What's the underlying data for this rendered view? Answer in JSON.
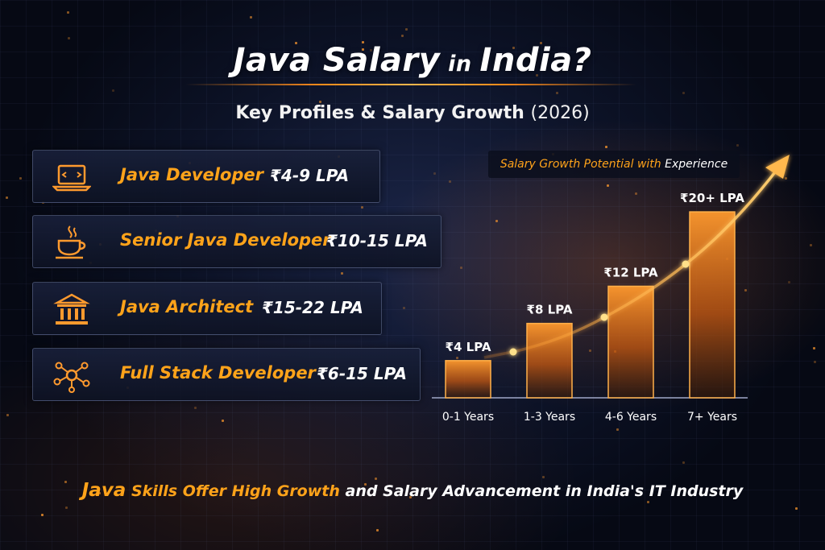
{
  "title": {
    "main": "Java Salary",
    "small": " in ",
    "end": "India?"
  },
  "subtitle": {
    "text": "Key Profiles & Salary Growth",
    "year": "(2026)"
  },
  "profiles": [
    {
      "name": "Java Developer",
      "salary": "₹4-9 LPA",
      "icon": "laptop-icon"
    },
    {
      "name": "Senior Java Developer",
      "salary": "₹10-15 LPA",
      "icon": "java-cup-icon"
    },
    {
      "name": "Java Architect",
      "salary": "₹15-22 LPA",
      "icon": "architecture-building-icon"
    },
    {
      "name": "Full Stack Developer",
      "salary": "₹6-15 LPA",
      "icon": "network-nodes-icon"
    }
  ],
  "chart_label": {
    "orange": "Salary Growth Potential with ",
    "white": "Experience"
  },
  "chart_data": {
    "type": "bar",
    "title": "Salary Growth Potential with Experience",
    "categories": [
      "0-1 Years",
      "1-3 Years",
      "4-6 Years",
      "7+ Years"
    ],
    "values": [
      4,
      8,
      12,
      20
    ],
    "labels": [
      "₹4 LPA",
      "₹8 LPA",
      "₹12 LPA",
      "₹20+ LPA"
    ],
    "unit": "LPA",
    "ylim": [
      0,
      22
    ],
    "trend_line": true,
    "grid": false
  },
  "footer": {
    "part1": "Java",
    "part2": " Skills Offer High Growth",
    "part3": " and Salary Advancement in India's IT Industry"
  },
  "colors": {
    "accent": "#ffa31a",
    "bar": "#ff8c1a",
    "background": "#0c1226"
  }
}
